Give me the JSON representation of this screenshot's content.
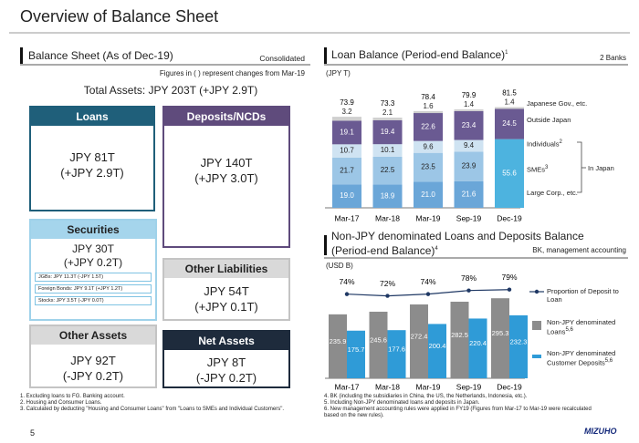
{
  "header": {
    "title": "Overview of Balance Sheet"
  },
  "balance_sheet": {
    "title": "Balance Sheet (As of Dec-19)",
    "scope": "Consolidated",
    "note": "Figures in ( ) represent changes from Mar-19",
    "total": "Total Assets: JPY 203T (+JPY 2.9T)",
    "loans": {
      "label": "Loans",
      "amount": "JPY 81T",
      "change": "(+JPY 2.9T)"
    },
    "deposits": {
      "label": "Deposits/NCDs",
      "amount": "JPY 140T",
      "change": "(+JPY 3.0T)"
    },
    "securities": {
      "label": "Securities",
      "amount": "JPY 30T",
      "change": "(+JPY 0.2T)",
      "items": [
        "JGBs: JPY 11.3T (-JPY 1.5T)",
        "Foreign Bonds: JPY 9.1T (+JPY 1.2T)",
        "Stocks: JPY 3.5T (-JPY 0.0T)"
      ]
    },
    "other_liabilities": {
      "label": "Other Liabilities",
      "amount": "JPY 54T",
      "change": "(+JPY 0.1T)"
    },
    "other_assets": {
      "label": "Other Assets",
      "amount": "JPY 92T",
      "change": "(-JPY 0.2T)"
    },
    "net_assets": {
      "label": "Net Assets",
      "amount": "JPY 8T",
      "change": "(-JPY 0.2T)"
    }
  },
  "chart_data": [
    {
      "type": "bar",
      "stacked": true,
      "title": "Loan Balance (Period-end Balance)",
      "title_note": "1",
      "scope": "2 Banks",
      "unit": "(JPY T)",
      "categories": [
        "Mar-17",
        "Mar-18",
        "Mar-19",
        "Sep-19",
        "Dec-19"
      ],
      "series": [
        {
          "name": "Large Corp., etc.",
          "color": "#6aa6d8",
          "values": [
            19.0,
            18.9,
            21.0,
            21.6,
            null
          ],
          "value_labels": [
            "19.0",
            "18.9",
            "21.0",
            "21.6",
            null
          ]
        },
        {
          "name": "SMEs",
          "note": "3",
          "color": "#9cc6e6",
          "values": [
            21.7,
            22.5,
            23.5,
            23.9,
            null
          ]
        },
        {
          "name": "Individuals",
          "note": "2",
          "color": "#cfe3f2",
          "values": [
            10.7,
            10.1,
            9.6,
            9.4,
            null
          ]
        },
        {
          "name": "In Japan",
          "color": "#4db3df",
          "values": [
            null,
            null,
            null,
            null,
            55.6
          ]
        },
        {
          "name": "Outside Japan",
          "color": "#6a5a92",
          "values": [
            19.1,
            19.4,
            22.6,
            23.4,
            24.5
          ]
        },
        {
          "name": "Japanese Gov., etc.",
          "color": "#cfcfcf",
          "values": [
            3.2,
            2.1,
            1.6,
            1.4,
            1.4
          ]
        }
      ],
      "totals": [
        73.9,
        73.3,
        78.4,
        79.9,
        81.5
      ],
      "ylim": [
        0,
        90
      ]
    },
    {
      "type": "bar",
      "title": "Non-JPY denominated Loans and Deposits Balance",
      "subtitle": "(Period-end Balance)",
      "subtitle_note": "4",
      "scope": "BK, management accounting",
      "unit": "(USD B)",
      "categories": [
        "Mar-17",
        "Mar-18",
        "Mar-19",
        "Sep-19",
        "Dec-19"
      ],
      "series": [
        {
          "name": "Non-JPY denominated Loans",
          "note": "5,6",
          "color": "#8c8c8c",
          "values": [
            235.9,
            245.6,
            272.4,
            282.5,
            295.3
          ]
        },
        {
          "name": "Non-JPY denominated Customer Deposits",
          "note": "5,6",
          "color": "#2f9bd7",
          "values": [
            175.7,
            177.6,
            200.4,
            220.4,
            232.3
          ]
        },
        {
          "name": "Proportion of Deposit to Loan",
          "type": "line",
          "axis": "y2",
          "color": "#1f3864",
          "values": [
            74,
            72,
            74,
            78,
            79
          ],
          "value_labels": [
            "74%",
            "72%",
            "74%",
            "78%",
            "79%"
          ]
        }
      ],
      "ylim": [
        0,
        380
      ],
      "y2lim": [
        -20,
        95
      ]
    }
  ],
  "footnotes_left": [
    "1. Excluding loans to FG. Banking account.",
    "2. Housing and Consumer Loans.",
    "3. Calculated by deducting \"Housing and Consumer Loans\" from \"Loans to SMEs and Individual Customers\"."
  ],
  "footnotes_right": [
    "4. BK (including the subsidiaries in China, the US, the Netherlands, Indonesia, etc.).",
    "5. Including Non-JPY denominated loans and deposits in Japan.",
    "6. New management accounting rules were applied in FY19 (Figures from Mar-17 to Mar-19 were recalculated based on the new rules)."
  ],
  "page_number": "5",
  "logo": "MIZUHO"
}
